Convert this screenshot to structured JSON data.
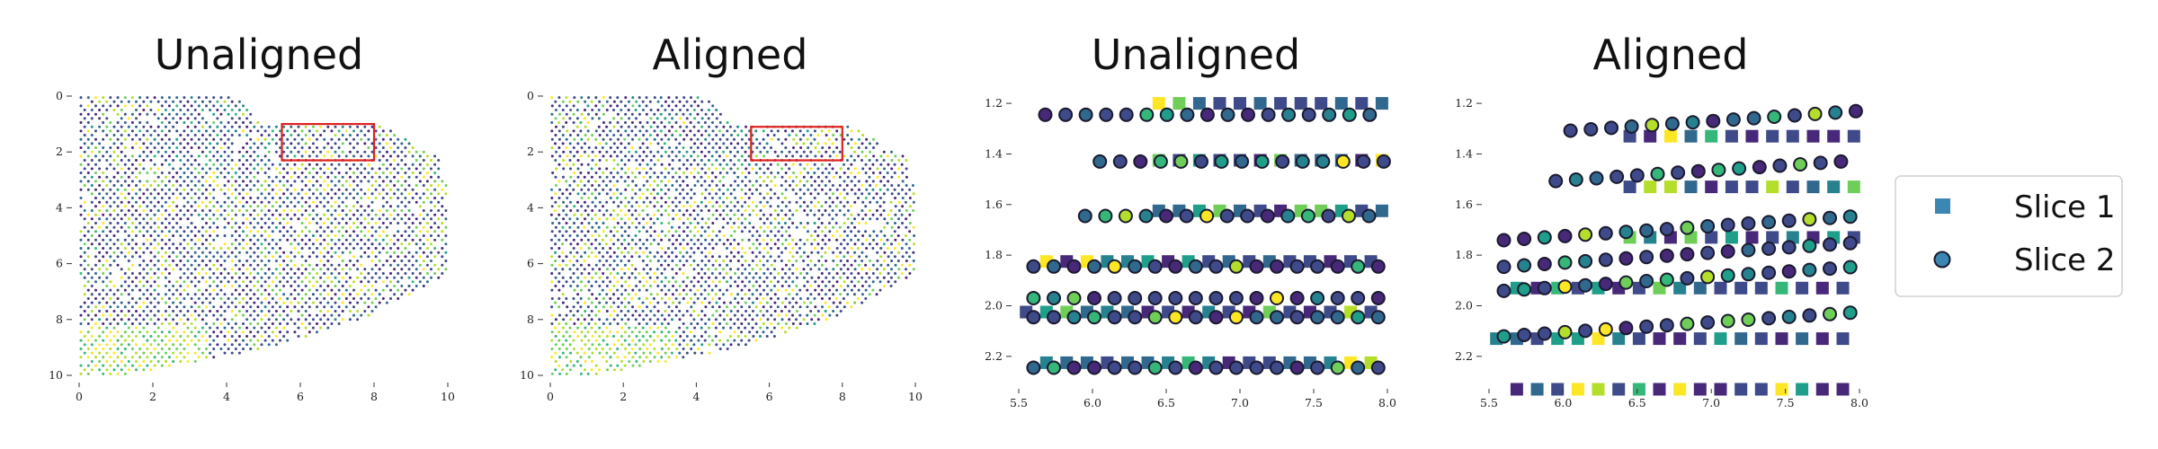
{
  "chart_data": [
    {
      "type": "scatter",
      "title": "Unaligned",
      "xlim": [
        0,
        10
      ],
      "ylim": [
        10,
        0
      ],
      "xticks": [
        0,
        2,
        4,
        6,
        8,
        10
      ],
      "yticks": [
        0,
        2,
        4,
        6,
        8,
        10
      ],
      "highlight_box": {
        "x": [
          5.5,
          8.0
        ],
        "y": [
          1.0,
          2.3
        ],
        "color": "#e02020"
      },
      "colormap": "viridis"
    },
    {
      "type": "scatter",
      "title": "Aligned",
      "xlim": [
        0,
        10
      ],
      "ylim": [
        10,
        0
      ],
      "xticks": [
        0,
        2,
        4,
        6,
        8,
        10
      ],
      "yticks": [
        0,
        2,
        4,
        6,
        8,
        10
      ],
      "highlight_box": {
        "x": [
          5.5,
          8.0
        ],
        "y": [
          1.1,
          2.3
        ],
        "color": "#e02020"
      },
      "colormap": "viridis"
    },
    {
      "type": "scatter",
      "title": "Unaligned",
      "xlim": [
        5.5,
        8.0
      ],
      "ylim": [
        2.3,
        1.15
      ],
      "xticks": [
        5.5,
        6.0,
        6.5,
        7.0,
        7.5,
        8.0
      ],
      "xtick_labels": [
        "5.5",
        "6.0",
        "6.5",
        "7.0",
        "7.5",
        "8.0"
      ],
      "yticks": [
        1.2,
        1.4,
        1.6,
        1.8,
        2.0,
        2.2
      ],
      "ytick_labels": [
        "1.2",
        "1.4",
        "1.6",
        "1.8",
        "2.0",
        "2.2"
      ],
      "series": [
        {
          "name": "Slice 1",
          "marker": "square",
          "y_rows": [
            1.2,
            1.425,
            1.625,
            1.825,
            2.025,
            2.225
          ],
          "y_rows_offset": [
            1.33,
            1.53,
            1.73,
            1.93,
            2.13,
            2.33
          ],
          "x_start": 6.45,
          "x_step": 0.1375
        },
        {
          "name": "Slice 2",
          "marker": "circle",
          "y_rows": [
            1.245,
            1.43,
            1.645,
            1.845,
            1.97,
            2.045,
            2.245
          ],
          "x_start": 5.7,
          "x_step": 0.1375
        }
      ]
    },
    {
      "type": "scatter",
      "title": "Aligned",
      "xlim": [
        5.5,
        8.0
      ],
      "ylim": [
        2.3,
        1.15
      ],
      "xticks": [
        5.5,
        6.0,
        6.5,
        7.0,
        7.5,
        8.0
      ],
      "xtick_labels": [
        "5.5",
        "6.0",
        "6.5",
        "7.0",
        "7.5",
        "8.0"
      ],
      "yticks": [
        1.2,
        1.4,
        1.6,
        1.8,
        2.0,
        2.2
      ],
      "ytick_labels": [
        "1.2",
        "1.4",
        "1.6",
        "1.8",
        "2.0",
        "2.2"
      ],
      "series": [
        {
          "name": "Slice 1",
          "marker": "square",
          "y_rows": [
            1.2,
            1.425,
            1.625,
            1.825,
            2.025,
            2.225
          ],
          "y_rows_offset": [
            1.33,
            1.53,
            1.73,
            1.93,
            2.13,
            2.33
          ],
          "x_start": 6.45,
          "x_step": 0.1375
        },
        {
          "name": "Slice 2",
          "marker": "circle",
          "y_rows": [
            1.245,
            1.43,
            1.645,
            1.845,
            1.97,
            2.045,
            2.245
          ],
          "x_start": 5.7,
          "x_step": 0.1375
        }
      ]
    }
  ],
  "legend": {
    "placement": "right",
    "entries": [
      {
        "label": "Slice 1",
        "marker": "square",
        "color": "#3b86b2"
      },
      {
        "label": "Slice 2",
        "marker": "circle",
        "color": "#3b86b2"
      }
    ]
  },
  "colors": {
    "viridis": [
      "#440154",
      "#482878",
      "#3e4a89",
      "#31688e",
      "#26828e",
      "#1f9e89",
      "#35b779",
      "#6ece58",
      "#b5de2b",
      "#fde725"
    ],
    "marker_edge": "#1a1a2e",
    "box": "#e02020"
  }
}
